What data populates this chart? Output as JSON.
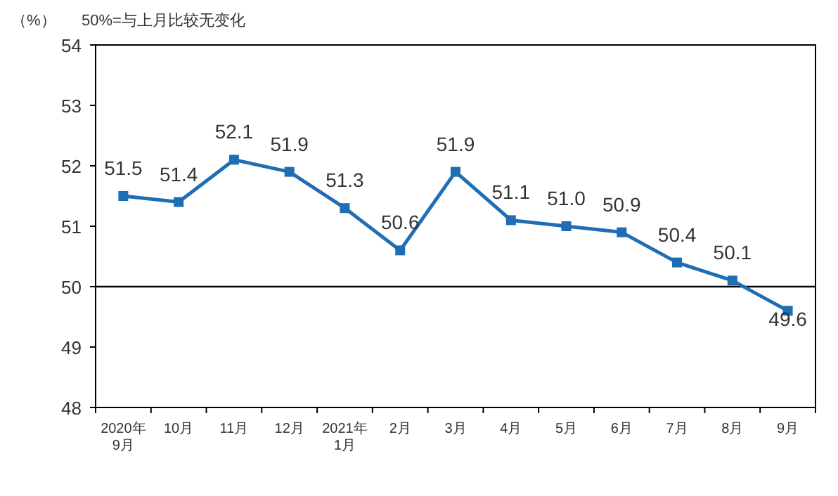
{
  "chart_data": {
    "type": "line",
    "ylabel": "（%）",
    "annotations": [
      "50%=与上月比较无变化"
    ],
    "categories": [
      "2020年\n9月",
      "10月",
      "11月",
      "12月",
      "2021年\n1月",
      "2月",
      "3月",
      "4月",
      "5月",
      "6月",
      "7月",
      "8月",
      "9月"
    ],
    "series": [
      {
        "color": "#1f6db4",
        "values": [
          51.5,
          51.4,
          52.1,
          51.9,
          51.3,
          50.6,
          51.9,
          51.1,
          51.0,
          50.9,
          50.4,
          50.1,
          49.6
        ]
      }
    ],
    "value_labels": [
      "51.5",
      "51.4",
      "52.1",
      "51.9",
      "51.3",
      "50.6",
      "51.9",
      "51.1",
      "51.0",
      "50.9",
      "50.4",
      "50.1",
      "49.6"
    ],
    "ylim": [
      48,
      54
    ],
    "yticks": [
      48,
      49,
      50,
      51,
      52,
      53,
      54
    ],
    "ref_lines": [
      {
        "axis": "y",
        "value": 50,
        "color": "#000000"
      }
    ],
    "marker": "square",
    "line_style": "solid",
    "grid": false
  }
}
